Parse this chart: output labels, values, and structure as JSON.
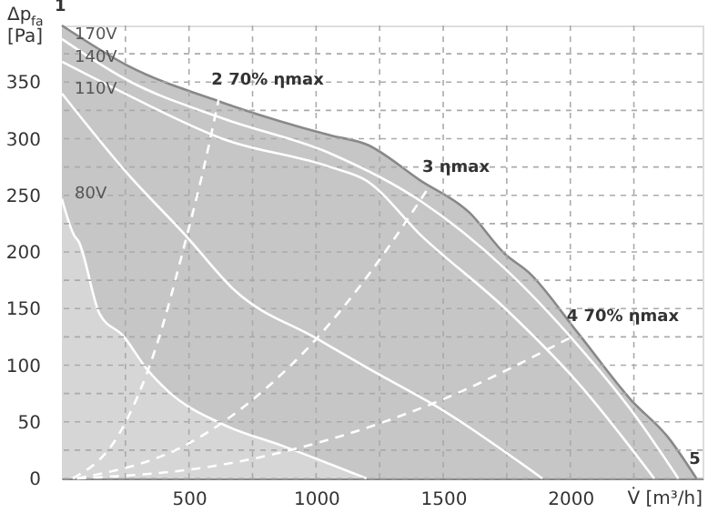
{
  "chart_data": {
    "type": "line",
    "xlabel": "V̇ [m³/h]",
    "ylabel": "Δp$_{fa}$ [Pa]",
    "xlim": [
      0,
      2520
    ],
    "ylim": [
      0,
      400
    ],
    "xticks": [
      {
        "value": 250,
        "label": null
      },
      500,
      {
        "value": 750,
        "label": null
      },
      1000,
      {
        "value": 1250,
        "label": null
      },
      1500,
      {
        "value": 1750,
        "label": null
      },
      2000,
      {
        "value": 2250,
        "label": null
      }
    ],
    "yticks": [
      0,
      {
        "value": 25,
        "label": null
      },
      50,
      {
        "value": 75,
        "label": null
      },
      100,
      {
        "value": 125,
        "label": null
      },
      150,
      {
        "value": 175,
        "label": null
      },
      200,
      {
        "value": 225,
        "label": null
      },
      250,
      {
        "value": 275,
        "label": null
      },
      300,
      {
        "value": 325,
        "label": null
      },
      350,
      {
        "value": 375,
        "label": null
      }
    ],
    "grid": true,
    "series": [
      {
        "type": "area",
        "color": "#c6c6c6",
        "x": [
          0,
          255,
          631,
          1056,
          1198,
          1411,
          1602,
          1744,
          1836,
          2028,
          2240,
          2382,
          2496
        ],
        "values": [
          400,
          365,
          332,
          303,
          295,
          263,
          235,
          198,
          182,
          129,
          69,
          37,
          0
        ]
      },
      {
        "type": "area",
        "name": "80V",
        "color": "#d6d6d6",
        "x": [
          0,
          50,
          64,
          149,
          241,
          333,
          418,
          631,
          865,
          1198
        ],
        "values": [
          247,
          214,
          210,
          145,
          126,
          97,
          77,
          48,
          29,
          0
        ]
      },
      {
        "name": "170V",
        "color": "#ffffff",
        "x": [
          0,
          255,
          631,
          1056,
          1411,
          1744,
          2028,
          2240,
          2425
        ],
        "values": [
          388,
          352,
          318,
          287,
          245,
          185,
          118,
          60,
          0
        ]
      },
      {
        "name": "140V",
        "color": "#ffffff",
        "x": [
          0,
          255,
          631,
          1056,
          1198,
          1411,
          1744,
          2028,
          2330
        ],
        "values": [
          368,
          339,
          300,
          275,
          263,
          215,
          150,
          85,
          0
        ]
      },
      {
        "name": "110V",
        "color": "#ffffff",
        "x": [
          0,
          255,
          489,
          680,
          1007,
          1198,
          1500,
          1890
        ],
        "values": [
          340,
          270,
          214,
          166,
          123,
          98,
          60,
          0
        ]
      },
      {
        "color": "#ffffff",
        "line_style": "dashed",
        "x": [
          43,
          227,
          369,
          489,
          560,
          617
        ],
        "values": [
          0,
          40,
          115,
          212,
          276,
          335
        ]
      },
      {
        "color": "#ffffff",
        "line_style": "dashed",
        "x": [
          60,
          500,
          800,
          1000,
          1200,
          1446
        ],
        "values": [
          0,
          31,
          79,
          123,
          178,
          258
        ]
      },
      {
        "color": "#ffffff",
        "line_style": "dashed",
        "x": [
          60,
          600,
          1000,
          1500,
          2014
        ],
        "values": [
          0,
          11,
          31,
          70,
          126
        ]
      }
    ],
    "annotations": [
      {
        "text": "1",
        "x": 0,
        "y": 400
      },
      {
        "text": "2 70% ηmax",
        "x": 617,
        "y": 335
      },
      {
        "text": "3 ηmax",
        "x": 1446,
        "y": 258
      },
      {
        "text": "4 70% ηmax",
        "x": 2014,
        "y": 126
      },
      {
        "text": "5",
        "x": 2496,
        "y": 0
      }
    ]
  }
}
